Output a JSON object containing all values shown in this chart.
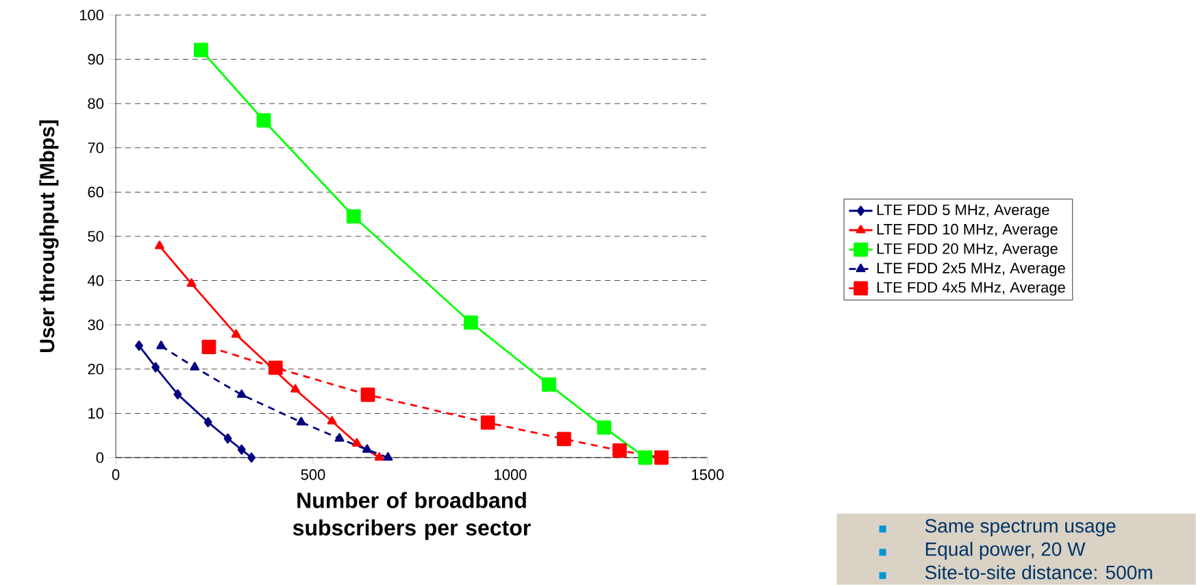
{
  "chart_data": {
    "type": "line",
    "xlabel": "Number of broadband subscribers per sector",
    "ylabel": "User throughput [Mbps]",
    "xlim": [
      0,
      1500
    ],
    "xticks": [
      0,
      500,
      1000,
      1500
    ],
    "ylim": [
      0,
      100
    ],
    "yticks": [
      0,
      10,
      20,
      30,
      40,
      50,
      60,
      70,
      80,
      90,
      100
    ],
    "grid": "y",
    "legend": "right",
    "series": [
      {
        "name": "LTE FDD 5 MHz, Average",
        "color": "#000080",
        "marker": "diamond",
        "line_style": "solid",
        "x": [
          59,
          101,
          157,
          234,
          284,
          319,
          344
        ],
        "values": [
          25.3,
          20.4,
          14.3,
          8.0,
          4.3,
          1.8,
          0
        ]
      },
      {
        "name": "LTE FDD 10 MHz, Average",
        "color": "#ff0000",
        "marker": "triangle",
        "line_style": "solid",
        "x": [
          111,
          192,
          305,
          455,
          548,
          611,
          668
        ],
        "values": [
          47.8,
          39.3,
          27.8,
          15.4,
          8.2,
          3.2,
          0
        ]
      },
      {
        "name": "LTE FDD 20 MHz, Average",
        "color": "#00ff00",
        "marker": "square",
        "line_style": "solid",
        "x": [
          216,
          375,
          603,
          900,
          1098,
          1238,
          1342
        ],
        "values": [
          92.1,
          76.2,
          54.5,
          30.5,
          16.5,
          6.8,
          0
        ]
      },
      {
        "name": "LTE FDD 2x5 MHz, Average",
        "color": "#000080",
        "marker": "triangle",
        "line_style": "dashed",
        "x": [
          115,
          200,
          319,
          470,
          567,
          637,
          690
        ],
        "values": [
          25.2,
          20.4,
          14.2,
          8.0,
          4.3,
          1.8,
          0
        ]
      },
      {
        "name": "LTE FDD 4x5 MHz, Average",
        "color": "#ff0000",
        "marker": "square",
        "line_style": "dashed",
        "x": [
          236,
          405,
          639,
          943,
          1136,
          1277,
          1383
        ],
        "values": [
          25.0,
          20.3,
          14.2,
          7.9,
          4.2,
          1.6,
          0
        ]
      }
    ],
    "annotations": [
      "Same spectrum usage",
      "Equal power, 20 W",
      "Site-to-site distance: 500m"
    ]
  }
}
